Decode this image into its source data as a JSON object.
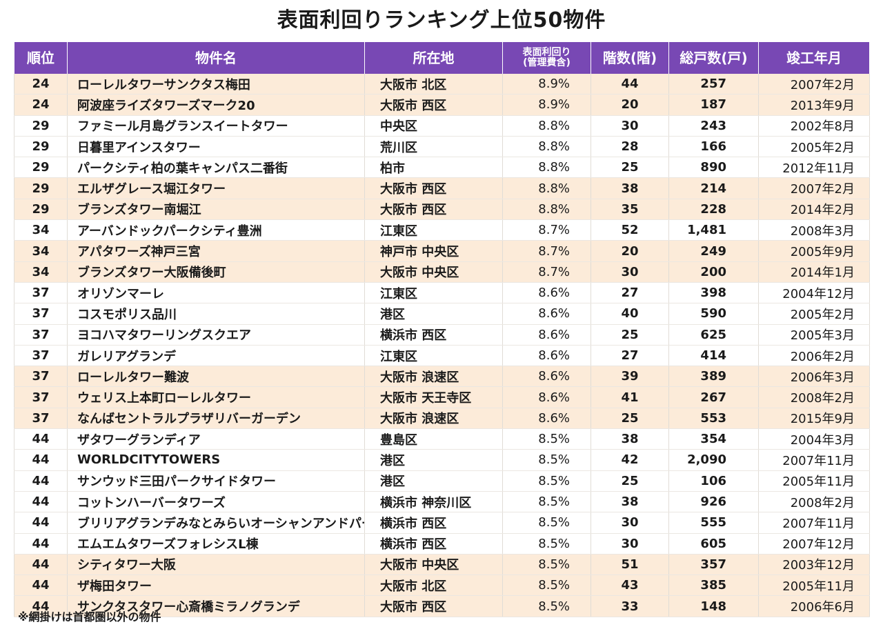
{
  "title": "表面利回りランキング上位50物件",
  "headers": {
    "rank": "順位",
    "name": "物件名",
    "location": "所在地",
    "yield_line1": "表面利回り",
    "yield_line2": "(管理費含)",
    "floors": "階数(階)",
    "units": "総戸数(戸)",
    "completed": "竣工年月"
  },
  "rows": [
    {
      "rank": "24",
      "name": "ローレルタワーサンクタス梅田",
      "location": "大阪市 北区",
      "yield": "8.9%",
      "floors": "44",
      "units": "257",
      "completed": "2007年2月",
      "shaded": true
    },
    {
      "rank": "24",
      "name": "阿波座ライズタワーズマーク20",
      "location": "大阪市 西区",
      "yield": "8.9%",
      "floors": "20",
      "units": "187",
      "completed": "2013年9月",
      "shaded": true
    },
    {
      "rank": "29",
      "name": "ファミール月島グランスイートタワー",
      "location": "中央区",
      "yield": "8.8%",
      "floors": "30",
      "units": "243",
      "completed": "2002年8月",
      "shaded": false
    },
    {
      "rank": "29",
      "name": "日暮里アインスタワー",
      "location": "荒川区",
      "yield": "8.8%",
      "floors": "28",
      "units": "166",
      "completed": "2005年2月",
      "shaded": false
    },
    {
      "rank": "29",
      "name": "パークシティ柏の葉キャンパス二番街",
      "location": "柏市",
      "yield": "8.8%",
      "floors": "25",
      "units": "890",
      "completed": "2012年11月",
      "shaded": false
    },
    {
      "rank": "29",
      "name": "エルザグレース堀江タワー",
      "location": "大阪市 西区",
      "yield": "8.8%",
      "floors": "38",
      "units": "214",
      "completed": "2007年2月",
      "shaded": true
    },
    {
      "rank": "29",
      "name": "ブランズタワー南堀江",
      "location": "大阪市 西区",
      "yield": "8.8%",
      "floors": "35",
      "units": "228",
      "completed": "2014年2月",
      "shaded": true
    },
    {
      "rank": "34",
      "name": "アーバンドックパークシティ豊洲",
      "location": "江東区",
      "yield": "8.7%",
      "floors": "52",
      "units": "1,481",
      "completed": "2008年3月",
      "shaded": false
    },
    {
      "rank": "34",
      "name": "アパタワーズ神戸三宮",
      "location": "神戸市 中央区",
      "yield": "8.7%",
      "floors": "20",
      "units": "249",
      "completed": "2005年9月",
      "shaded": true
    },
    {
      "rank": "34",
      "name": "ブランズタワー大阪備後町",
      "location": "大阪市 中央区",
      "yield": "8.7%",
      "floors": "30",
      "units": "200",
      "completed": "2014年1月",
      "shaded": true
    },
    {
      "rank": "37",
      "name": "オリゾンマーレ",
      "location": "江東区",
      "yield": "8.6%",
      "floors": "27",
      "units": "398",
      "completed": "2004年12月",
      "shaded": false
    },
    {
      "rank": "37",
      "name": "コスモポリス品川",
      "location": "港区",
      "yield": "8.6%",
      "floors": "40",
      "units": "590",
      "completed": "2005年2月",
      "shaded": false
    },
    {
      "rank": "37",
      "name": "ヨコハマタワーリングスクエア",
      "location": "横浜市 西区",
      "yield": "8.6%",
      "floors": "25",
      "units": "625",
      "completed": "2005年3月",
      "shaded": false
    },
    {
      "rank": "37",
      "name": "ガレリアグランデ",
      "location": "江東区",
      "yield": "8.6%",
      "floors": "27",
      "units": "414",
      "completed": "2006年2月",
      "shaded": false
    },
    {
      "rank": "37",
      "name": "ローレルタワー難波",
      "location": "大阪市 浪速区",
      "yield": "8.6%",
      "floors": "39",
      "units": "389",
      "completed": "2006年3月",
      "shaded": true
    },
    {
      "rank": "37",
      "name": "ウェリス上本町ローレルタワー",
      "location": "大阪市 天王寺区",
      "yield": "8.6%",
      "floors": "41",
      "units": "267",
      "completed": "2008年2月",
      "shaded": true
    },
    {
      "rank": "37",
      "name": "なんばセントラルプラザリバーガーデン",
      "location": "大阪市 浪速区",
      "yield": "8.6%",
      "floors": "25",
      "units": "553",
      "completed": "2015年9月",
      "shaded": true
    },
    {
      "rank": "44",
      "name": "ザタワーグランディア",
      "location": "豊島区",
      "yield": "8.5%",
      "floors": "38",
      "units": "354",
      "completed": "2004年3月",
      "shaded": false
    },
    {
      "rank": "44",
      "name": "WORLDCITYTOWERS",
      "location": "港区",
      "yield": "8.5%",
      "floors": "42",
      "units": "2,090",
      "completed": "2007年11月",
      "shaded": false
    },
    {
      "rank": "44",
      "name": "サンウッド三田パークサイドタワー",
      "location": "港区",
      "yield": "8.5%",
      "floors": "25",
      "units": "106",
      "completed": "2005年11月",
      "shaded": false
    },
    {
      "rank": "44",
      "name": "コットンハーバータワーズ",
      "location": "横浜市 神奈川区",
      "yield": "8.5%",
      "floors": "38",
      "units": "926",
      "completed": "2008年2月",
      "shaded": false
    },
    {
      "rank": "44",
      "name": "ブリリアグランデみなとみらいオーシャンアンドパーク",
      "location": "横浜市 西区",
      "yield": "8.5%",
      "floors": "30",
      "units": "555",
      "completed": "2007年11月",
      "shaded": false
    },
    {
      "rank": "44",
      "name": "エムエムタワーズフォレシスL棟",
      "location": "横浜市 西区",
      "yield": "8.5%",
      "floors": "30",
      "units": "605",
      "completed": "2007年12月",
      "shaded": false
    },
    {
      "rank": "44",
      "name": "シティタワー大阪",
      "location": "大阪市 中央区",
      "yield": "8.5%",
      "floors": "51",
      "units": "357",
      "completed": "2003年12月",
      "shaded": true
    },
    {
      "rank": "44",
      "name": "ザ梅田タワー",
      "location": "大阪市 北区",
      "yield": "8.5%",
      "floors": "43",
      "units": "385",
      "completed": "2005年11月",
      "shaded": true
    },
    {
      "rank": "44",
      "name": "サンクタスタワー心斎橋ミラノグランデ",
      "location": "大阪市 西区",
      "yield": "8.5%",
      "floors": "33",
      "units": "148",
      "completed": "2006年6月",
      "shaded": true
    }
  ],
  "footnote": "※網掛けは首都圏以外の物件",
  "colors": {
    "header_bg": "#7848b4",
    "shaded_row_bg": "#fcebd9"
  }
}
